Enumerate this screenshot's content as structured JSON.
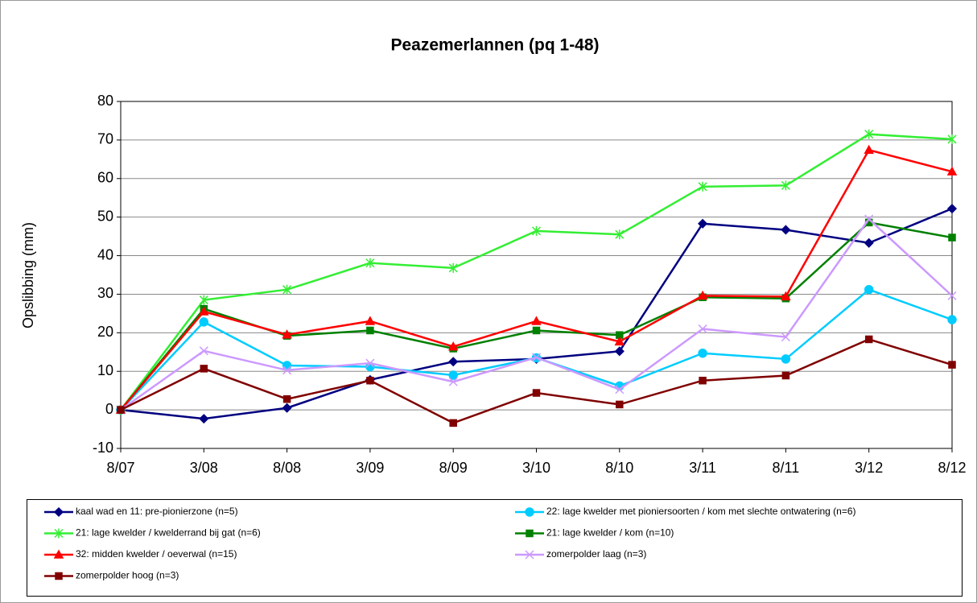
{
  "chart_data": {
    "type": "line",
    "title": "Peazemerlannen (pq 1-48)",
    "y_label": "Opslibbing (mm)",
    "categories": [
      "8/07",
      "3/08",
      "8/08",
      "3/09",
      "8/09",
      "3/10",
      "8/10",
      "3/11",
      "8/11",
      "3/12",
      "8/12"
    ],
    "ylim": [
      -10,
      80
    ],
    "yticks": [
      -10,
      0,
      10,
      20,
      30,
      40,
      50,
      60,
      70,
      80
    ],
    "grid": true,
    "legend": "bottom",
    "series": [
      {
        "name": "kaal wad en 11: pre-pionierzone (n=5)",
        "color": "#000080",
        "marker": "diamond",
        "values": [
          0,
          -2.3,
          0.5,
          7.8,
          12.5,
          13.2,
          15.2,
          48.3,
          46.7,
          43.3,
          52.2
        ]
      },
      {
        "name": "22: lage kwelder met pioniersoorten / kom met slechte ontwatering (n=6)",
        "color": "#00ccff",
        "marker": "circle",
        "values": [
          0,
          22.8,
          11.5,
          11.2,
          9,
          13.5,
          6.2,
          14.7,
          13.2,
          31.2,
          23.4
        ]
      },
      {
        "name": "21: lage kwelder / kwelderrand bij gat (n=6)",
        "color": "#33ee33",
        "marker": "star",
        "values": [
          0,
          28.5,
          31.2,
          38.1,
          36.8,
          46.4,
          45.5,
          57.9,
          58.2,
          71.5,
          70.2
        ]
      },
      {
        "name": "21: lage kwelder / kom (n=10)",
        "color": "#008000",
        "marker": "square",
        "values": [
          0,
          26.2,
          19.2,
          20.6,
          15.9,
          20.6,
          19.4,
          29.2,
          28.9,
          48.6,
          44.7
        ]
      },
      {
        "name": "32: midden kwelder / oeverwal (n=15)",
        "color": "#ff0000",
        "marker": "triangle",
        "values": [
          0,
          25.5,
          19.5,
          23,
          16.4,
          23,
          17.7,
          29.6,
          29.4,
          67.4,
          61.8
        ]
      },
      {
        "name": "zomerpolder laag (n=3)",
        "color": "#cc99ff",
        "marker": "x",
        "values": [
          0,
          15.3,
          10.3,
          12.1,
          7.3,
          13.6,
          5.3,
          21,
          18.9,
          49.5,
          29.6
        ]
      },
      {
        "name": "zomerpolder hoog (n=3)",
        "color": "#800000",
        "marker": "square",
        "values": [
          0,
          10.7,
          2.8,
          7.6,
          -3.4,
          4.4,
          1.4,
          7.6,
          8.9,
          18.3,
          11.7
        ]
      }
    ]
  }
}
